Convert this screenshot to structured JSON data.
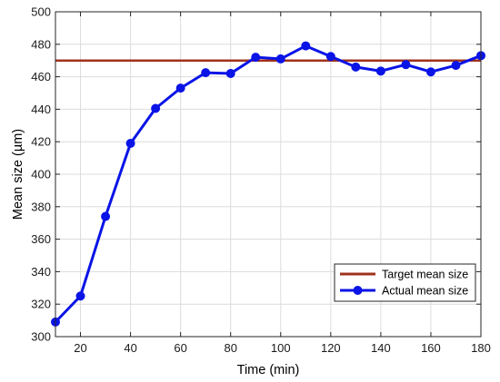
{
  "chart_data": {
    "type": "line",
    "xlabel": "Time (min)",
    "ylabel": "Mean size (µm)",
    "xlim": [
      10,
      180
    ],
    "ylim": [
      300,
      500
    ],
    "x_ticks": [
      20,
      40,
      60,
      80,
      100,
      120,
      140,
      160,
      180
    ],
    "y_ticks": [
      300,
      320,
      340,
      360,
      380,
      400,
      420,
      440,
      460,
      480,
      500
    ],
    "grid": true,
    "legend_position": "bottom-right",
    "series": [
      {
        "name": "Target mean size",
        "color": "#a0321e",
        "marker": "none",
        "x": [
          10,
          180
        ],
        "y": [
          470,
          470
        ]
      },
      {
        "name": "Actual mean size",
        "color": "#0a14e6",
        "marker": "circle",
        "x": [
          10,
          20,
          30,
          40,
          50,
          60,
          70,
          80,
          90,
          100,
          110,
          120,
          130,
          140,
          150,
          160,
          170,
          180
        ],
        "y": [
          309,
          325,
          374,
          419,
          440.5,
          453,
          462.5,
          462,
          472,
          471,
          479,
          472.5,
          466,
          463.5,
          467.5,
          463,
          467,
          473
        ]
      }
    ]
  }
}
